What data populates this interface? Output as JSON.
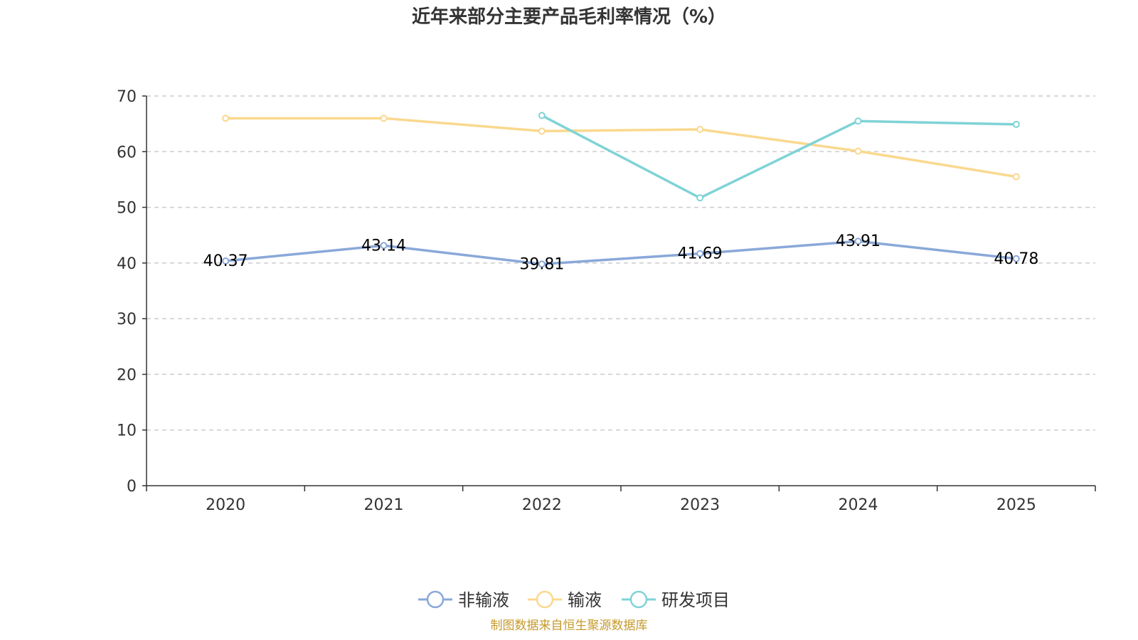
{
  "colors": {
    "series": [
      "#8aa8d9",
      "#fad88e",
      "#7fd3d6"
    ],
    "axis": "#333333",
    "grid": "#cccccc",
    "source": "#c69a2b"
  },
  "chart_data": {
    "type": "line",
    "title": "近年来部分主要产品毛利率情况（%）",
    "categories": [
      "2020",
      "2021",
      "2022",
      "2023",
      "2024",
      "2025"
    ],
    "ylim": [
      0,
      70
    ],
    "yticks": [
      "0",
      "10",
      "20",
      "30",
      "40",
      "50",
      "60",
      "70"
    ],
    "series": [
      {
        "name": "非输液",
        "values": [
          40.37,
          43.14,
          39.81,
          41.69,
          43.91,
          40.78
        ],
        "labels": [
          "40.37",
          "43.14",
          "39.81",
          "41.69",
          "43.91",
          "40.78"
        ]
      },
      {
        "name": "输液",
        "values": [
          66.0,
          66.0,
          63.7,
          64.0,
          60.1,
          55.5
        ]
      },
      {
        "name": "研发项目",
        "values": [
          null,
          null,
          66.5,
          51.7,
          65.5,
          64.9
        ]
      }
    ],
    "grid": true,
    "legend": "bottom-center",
    "source": "制图数据来自恒生聚源数据库"
  }
}
